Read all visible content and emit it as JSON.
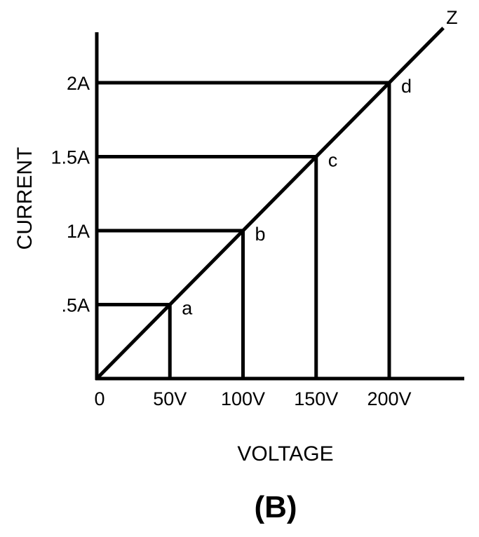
{
  "chart_data": {
    "type": "line",
    "xlabel": "VOLTAGE",
    "ylabel": "CURRENT",
    "caption": "(B)",
    "x_unit": "V",
    "y_unit": "A",
    "xlim": [
      0,
      250
    ],
    "ylim": [
      0,
      2.4
    ],
    "grid": false,
    "x_ticks": [
      {
        "value": 0,
        "label": "0"
      },
      {
        "value": 50,
        "label": "50V"
      },
      {
        "value": 100,
        "label": "100V"
      },
      {
        "value": 150,
        "label": "150V"
      },
      {
        "value": 200,
        "label": "200V"
      }
    ],
    "y_ticks": [
      {
        "value": 0.5,
        "label": ".5A"
      },
      {
        "value": 1,
        "label": "1A"
      },
      {
        "value": 1.5,
        "label": "1.5A"
      },
      {
        "value": 2,
        "label": "2A"
      }
    ],
    "series": [
      {
        "name": "Z",
        "points": [
          {
            "x": 50,
            "y": 0.5,
            "label": "a"
          },
          {
            "x": 100,
            "y": 1,
            "label": "b"
          },
          {
            "x": 150,
            "y": 1.5,
            "label": "c"
          },
          {
            "x": 200,
            "y": 2,
            "label": "d"
          }
        ],
        "line_end": {
          "x": 237,
          "y": 2.37
        }
      }
    ],
    "color": "#000000"
  }
}
